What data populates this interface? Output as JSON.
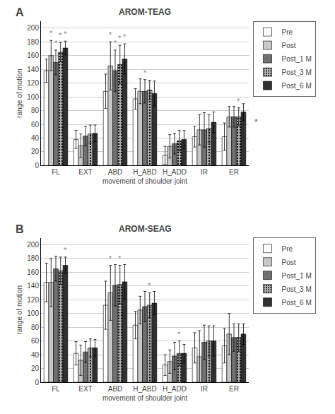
{
  "chart_data": [
    {
      "type": "bar",
      "title": "AROM-TEAG",
      "label": "A",
      "categories": [
        "FL",
        "EXT",
        "ABD",
        "H_ABD",
        "H_ADD",
        "IR",
        "ER"
      ],
      "series": [
        {
          "name": "Pre",
          "color": "#ffffff",
          "values": [
            138,
            38,
            108,
            97,
            15,
            42,
            42
          ],
          "errors": [
            17,
            13,
            25,
            15,
            13,
            15,
            20
          ]
        },
        {
          "name": "Post",
          "color": "#c8c8c8",
          "values": [
            160,
            29,
            145,
            108,
            28,
            52,
            71
          ],
          "errors": [
            22,
            17,
            35,
            18,
            17,
            22,
            15
          ]
        },
        {
          "name": "Post_1 M",
          "color": "#707070",
          "values": [
            150,
            43,
            138,
            108,
            32,
            52,
            71
          ],
          "errors": [
            18,
            14,
            30,
            17,
            15,
            25,
            15
          ]
        },
        {
          "name": "Post_3 M",
          "color": "#b0b0b0",
          "marker": "dots",
          "values": [
            165,
            46,
            147,
            110,
            36,
            54,
            71
          ],
          "errors": [
            14,
            13,
            28,
            14,
            15,
            20,
            13
          ]
        },
        {
          "name": "Post_6 M",
          "color": "#303030",
          "values": [
            171,
            47,
            155,
            105,
            38,
            63,
            78
          ],
          "errors": [
            10,
            12,
            22,
            18,
            13,
            15,
            12
          ]
        }
      ],
      "annotations": [
        {
          "category": "FL",
          "series": "Post",
          "text": "*",
          "color": "#888888"
        },
        {
          "category": "FL",
          "series": "Post_1 M",
          "text": "*",
          "color": "#888888"
        },
        {
          "category": "FL",
          "series": "Post_3 M",
          "text": "*",
          "color": "#888888"
        },
        {
          "category": "FL",
          "series": "Post_6 M",
          "text": "*",
          "color": "#888888"
        },
        {
          "category": "ABD",
          "series": "Post",
          "text": "*",
          "color": "#888888"
        },
        {
          "category": "ABD",
          "series": "Post_1 M",
          "text": "*",
          "color": "#888888"
        },
        {
          "category": "ABD",
          "series": "Post_3 M",
          "text": "*",
          "color": "#888888"
        },
        {
          "category": "ABD",
          "series": "Post_6 M",
          "text": "*",
          "color": "#888888"
        },
        {
          "category": "H_ABD",
          "series": "Post_1 M",
          "text": "*",
          "color": "#888888"
        },
        {
          "category": "ER",
          "series": "Post_3 M",
          "text": "*",
          "color": "#888888"
        }
      ],
      "side_text": {
        "text": "*",
        "color": "#555555"
      },
      "xlabel": "movement of shoulder joint",
      "ylabel": "range of motion",
      "ylim": [
        0,
        210
      ],
      "yticks": [
        0,
        20,
        40,
        60,
        80,
        100,
        120,
        140,
        160,
        180,
        200
      ],
      "grid": true,
      "legend": "right"
    },
    {
      "type": "bar",
      "title": "AROM-SEAG",
      "label": "B",
      "categories": [
        "FL",
        "EXT",
        "ABD",
        "H_ABD",
        "H_ADD",
        "IR",
        "ER"
      ],
      "series": [
        {
          "name": "Pre",
          "color": "#ffffff",
          "values": [
            145,
            42,
            112,
            83,
            25,
            50,
            53
          ],
          "errors": [
            28,
            17,
            35,
            20,
            15,
            22,
            25
          ]
        },
        {
          "name": "Post",
          "color": "#c8c8c8",
          "values": [
            145,
            32,
            130,
            105,
            30,
            37,
            70
          ],
          "errors": [
            35,
            22,
            40,
            20,
            17,
            38,
            30
          ]
        },
        {
          "name": "Post_1 M",
          "color": "#707070",
          "values": [
            165,
            44,
            141,
            110,
            38,
            58,
            65
          ],
          "errors": [
            18,
            15,
            30,
            22,
            20,
            25,
            20
          ]
        },
        {
          "name": "Post_3 M",
          "color": "#b0b0b0",
          "marker": "dots",
          "values": [
            162,
            50,
            142,
            112,
            42,
            60,
            65
          ],
          "errors": [
            20,
            13,
            28,
            18,
            18,
            22,
            20
          ]
        },
        {
          "name": "Post_6 M",
          "color": "#303030",
          "values": [
            170,
            50,
            146,
            115,
            42,
            60,
            70
          ],
          "errors": [
            12,
            12,
            25,
            17,
            13,
            22,
            15
          ]
        }
      ],
      "annotations": [
        {
          "category": "FL",
          "series": "Post_6 M",
          "text": "*",
          "color": "#888888"
        },
        {
          "category": "ABD",
          "series": "Post",
          "text": "*",
          "color": "#888888"
        },
        {
          "category": "ABD",
          "series": "Post_3 M",
          "text": "*",
          "color": "#888888"
        },
        {
          "category": "H_ABD",
          "series": "Post_3 M",
          "text": "*",
          "color": "#888888"
        },
        {
          "category": "H_ADD",
          "series": "Post_3 M",
          "text": "*",
          "color": "#888888"
        }
      ],
      "xlabel": "movement of shoulder joint",
      "ylabel": "range of motion",
      "ylim": [
        0,
        210
      ],
      "yticks": [
        0,
        20,
        40,
        60,
        80,
        100,
        120,
        140,
        160,
        180,
        200
      ],
      "grid": true,
      "legend": "right"
    }
  ]
}
